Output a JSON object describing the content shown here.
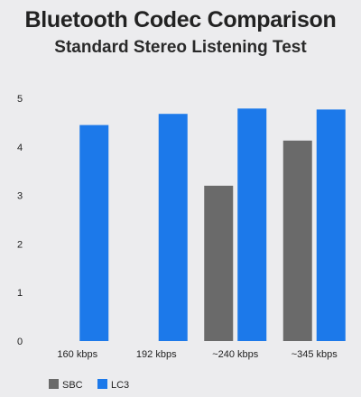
{
  "chart_data": {
    "type": "bar",
    "title": "Bluetooth Codec Comparison",
    "subtitle": "Standard Stereo Listening Test",
    "xlabel": "",
    "ylabel": "",
    "categories": [
      "160 kbps",
      "192 kbps",
      "~240 kbps",
      "~345 kbps"
    ],
    "series": [
      {
        "name": "SBC",
        "color": "#6a6a6a",
        "values": [
          null,
          null,
          3.2,
          4.13
        ]
      },
      {
        "name": "LC3",
        "color": "#1c79ea",
        "values": [
          4.45,
          4.68,
          4.79,
          4.77
        ]
      }
    ],
    "ylim": [
      0,
      5
    ],
    "yticks": [
      0,
      1,
      2,
      3,
      4,
      5
    ],
    "grid": false,
    "legend_position": "bottom-left"
  }
}
